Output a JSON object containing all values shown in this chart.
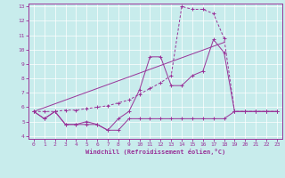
{
  "bg_color": "#c8ecec",
  "line_color": "#993399",
  "xlim": [
    -0.5,
    23.5
  ],
  "ylim": [
    3.8,
    13.2
  ],
  "yticks": [
    4,
    5,
    6,
    7,
    8,
    9,
    10,
    11,
    12,
    13
  ],
  "xticks": [
    0,
    1,
    2,
    3,
    4,
    5,
    6,
    7,
    8,
    9,
    10,
    11,
    12,
    13,
    14,
    15,
    16,
    17,
    18,
    19,
    20,
    21,
    22,
    23
  ],
  "xlabel": "Windchill (Refroidissement éolien,°C)",
  "line1_x": [
    0,
    1,
    2,
    3,
    4,
    5,
    6,
    7,
    8,
    9,
    10,
    11,
    12,
    13,
    14,
    15,
    16,
    17,
    18,
    19,
    20,
    21,
    22,
    23
  ],
  "line1_y": [
    5.7,
    5.2,
    5.7,
    4.8,
    4.8,
    4.8,
    4.8,
    4.4,
    4.4,
    5.2,
    5.2,
    5.2,
    5.2,
    5.2,
    5.2,
    5.2,
    5.2,
    5.2,
    5.2,
    5.7,
    5.7,
    5.7,
    5.7,
    5.7
  ],
  "line2_x": [
    0,
    1,
    2,
    3,
    4,
    5,
    6,
    7,
    8,
    9,
    10,
    11,
    12,
    13,
    14,
    15,
    16,
    17,
    18,
    19,
    20,
    21,
    22,
    23
  ],
  "line2_y": [
    5.7,
    5.2,
    5.7,
    4.8,
    4.8,
    5.0,
    4.8,
    4.4,
    5.2,
    5.7,
    7.2,
    9.5,
    9.5,
    7.5,
    7.5,
    8.2,
    8.5,
    10.7,
    9.8,
    5.7,
    5.7,
    5.7,
    5.7,
    5.7
  ],
  "line3_x": [
    0,
    1,
    2,
    3,
    4,
    5,
    6,
    7,
    8,
    9,
    10,
    11,
    12,
    13,
    14,
    15,
    16,
    17,
    18,
    19,
    20,
    21,
    22,
    23
  ],
  "line3_y": [
    5.7,
    5.7,
    5.7,
    5.8,
    5.8,
    5.9,
    6.0,
    6.1,
    6.3,
    6.5,
    6.9,
    7.3,
    7.7,
    8.2,
    13.0,
    12.8,
    12.8,
    12.5,
    10.8,
    5.7,
    5.7,
    5.7,
    5.7,
    5.7
  ],
  "line4_x": [
    0,
    18
  ],
  "line4_y": [
    5.7,
    10.5
  ]
}
